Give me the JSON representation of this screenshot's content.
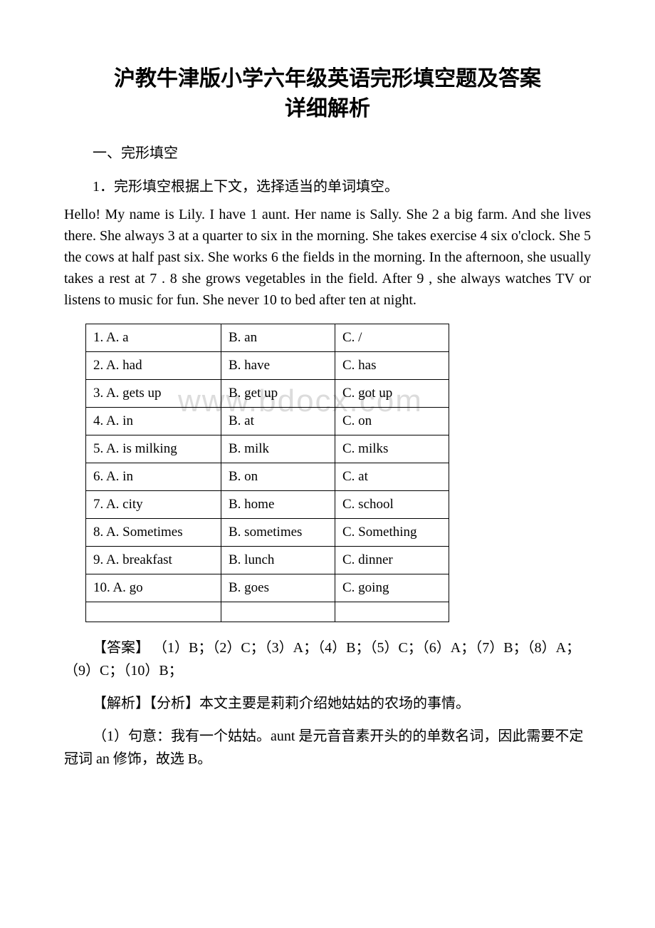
{
  "title_line1": "沪教牛津版小学六年级英语完形填空题及答案",
  "title_line2": "详细解析",
  "section_label": "一、完形填空",
  "question_label": "1．完形填空根据上下文，选择适当的单词填空。",
  "passage": "Hello! My name is Lily. I have  1  aunt. Her name is Sally. She  2  a big farm. And she lives there. She always  3  at a quarter to six in the morning. She takes exercise  4  six o'clock. She  5  the cows at half past six. She works  6  the fields in the morning. In the afternoon, she usually takes a rest at  7 .  8  she grows vegetables in the field. After  9 , she always watches TV or listens to music for fun. She never  10  to bed after ten at night.",
  "watermark": "www.bdocx.com",
  "options": [
    {
      "a": "1. A. a",
      "b": "B. an",
      "c": "C. /"
    },
    {
      "a": "2. A. had",
      "b": "B. have",
      "c": "C. has"
    },
    {
      "a": "3. A. gets up",
      "b": "B. get up",
      "c": "C. got up"
    },
    {
      "a": "4. A. in",
      "b": "B. at",
      "c": "C. on"
    },
    {
      "a": "5. A. is milking",
      "b": "B. milk",
      "c": "C. milks"
    },
    {
      "a": "6. A. in",
      "b": "B. on",
      "c": "C. at"
    },
    {
      "a": "7. A. city",
      "b": "B. home",
      "c": "C. school"
    },
    {
      "a": "8. A. Sometimes",
      "b": "B. sometimes",
      "c": "C. Something"
    },
    {
      "a": "9. A. breakfast",
      "b": "B. lunch",
      "c": "C. dinner"
    },
    {
      "a": "10. A. go",
      "b": "B. goes",
      "c": "C. going"
    }
  ],
  "answer_text": "【答案】 （1）B；（2）C；（3）A；（4）B；（5）C；（6）A；（7）B；（8）A；（9）C；（10）B；",
  "analysis_text": "【解析】【分析】本文主要是莉莉介绍她姑姑的农场的事情。",
  "explain_1": "（1）句意：我有一个姑姑。aunt 是元音音素开头的的单数名词，因此需要不定冠词 an 修饰，故选 B。"
}
